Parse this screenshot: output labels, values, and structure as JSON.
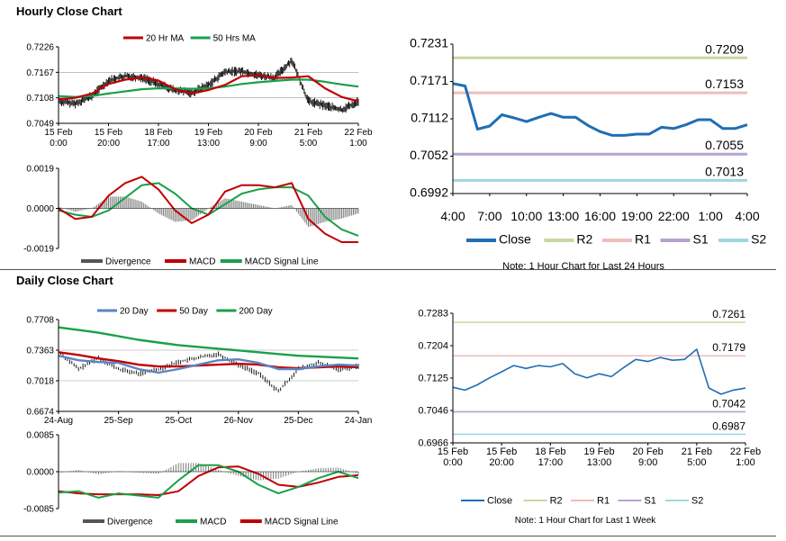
{
  "sections": {
    "hourly_title": "Hourly Close Chart",
    "daily_title": "Daily Close Chart"
  },
  "chart_data": [
    {
      "id": "hourly_price",
      "type": "line",
      "ylim": [
        0.7049,
        0.7226
      ],
      "yticks": [
        "0.7226",
        "0.7167",
        "0.7108",
        "0.7049"
      ],
      "xticks": [
        [
          "15 Feb",
          "0:00"
        ],
        [
          "15 Feb",
          "20:00"
        ],
        [
          "18 Feb",
          "17:00"
        ],
        [
          "19 Feb",
          "13:00"
        ],
        [
          "20 Feb",
          "9:00"
        ],
        [
          "21 Feb",
          "5:00"
        ],
        [
          "22 Feb",
          "1:00"
        ]
      ],
      "legend": [
        "20 Hr MA",
        "50 Hrs MA"
      ],
      "colors": {
        "ma20": "#c00000",
        "ma50": "#1aa04a",
        "price": "#000000"
      },
      "series": [
        {
          "name": "20 Hr MA",
          "values": [
            0.7105,
            0.7108,
            0.7118,
            0.714,
            0.715,
            0.7155,
            0.7148,
            0.7128,
            0.7118,
            0.7126,
            0.7138,
            0.7158,
            0.716,
            0.7154,
            0.7155,
            0.7158,
            0.713,
            0.711,
            0.71
          ]
        },
        {
          "name": "50 Hrs MA",
          "values": [
            0.7112,
            0.711,
            0.7112,
            0.7118,
            0.7123,
            0.7128,
            0.713,
            0.713,
            0.7129,
            0.713,
            0.7134,
            0.714,
            0.7144,
            0.7147,
            0.715,
            0.715,
            0.7145,
            0.7139,
            0.7134
          ]
        },
        {
          "name": "Close",
          "values": [
            0.71,
            0.7095,
            0.7112,
            0.7148,
            0.7158,
            0.7155,
            0.714,
            0.7125,
            0.712,
            0.7138,
            0.7168,
            0.717,
            0.716,
            0.7155,
            0.7195,
            0.71,
            0.709,
            0.708,
            0.71
          ]
        }
      ]
    },
    {
      "id": "hourly_macd",
      "type": "line",
      "ylim": [
        -0.0019,
        0.0019
      ],
      "yticks": [
        "0.0019",
        "0.0000",
        "-0.0019"
      ],
      "legend": [
        "Divergence",
        "MACD",
        "MACD Signal Line"
      ],
      "colors": {
        "divergence": "#666666",
        "macd": "#c00000",
        "signal": "#1aa04a"
      },
      "series": [
        {
          "name": "MACD",
          "values": [
            0.0,
            -0.0005,
            -0.0004,
            0.0006,
            0.0012,
            0.0015,
            0.0009,
            -0.0001,
            -0.0007,
            -0.0003,
            0.0008,
            0.0011,
            0.0011,
            0.001,
            0.0012,
            -0.0005,
            -0.0012,
            -0.0016,
            -0.0016
          ]
        },
        {
          "name": "MACD Signal Line",
          "values": [
            -0.0001,
            -0.0003,
            -0.0004,
            -0.0001,
            0.0005,
            0.0011,
            0.0012,
            0.0007,
            0.0,
            -0.0003,
            0.0002,
            0.0007,
            0.0009,
            0.001,
            0.001,
            0.0006,
            -0.0004,
            -0.001,
            -0.0013
          ]
        }
      ]
    },
    {
      "id": "hourly_levels",
      "type": "line",
      "ylim": [
        0.6992,
        0.7231
      ],
      "yticks": [
        "0.7231",
        "0.7171",
        "0.7112",
        "0.7052",
        "0.6992"
      ],
      "xticks": [
        "4:00",
        "7:00",
        "10:00",
        "13:00",
        "16:00",
        "19:00",
        "22:00",
        "1:00",
        "4:00"
      ],
      "legend": [
        "Close",
        "R2",
        "R1",
        "S1",
        "S2"
      ],
      "colors": {
        "close": "#1f6eb4",
        "r2": "#c6d9a0",
        "r1": "#efbcbc",
        "s1": "#b6a2cf",
        "s2": "#9ed6e0"
      },
      "levels": [
        {
          "name": "R2",
          "value": 0.7209,
          "label": "0.7209"
        },
        {
          "name": "R1",
          "value": 0.7153,
          "label": "0.7153"
        },
        {
          "name": "S1",
          "value": 0.7055,
          "label": "0.7055"
        },
        {
          "name": "S2",
          "value": 0.7013,
          "label": "0.7013"
        }
      ],
      "close": [
        0.7168,
        0.7164,
        0.7095,
        0.71,
        0.7118,
        0.7113,
        0.7107,
        0.7114,
        0.712,
        0.7114,
        0.7114,
        0.7101,
        0.7091,
        0.7085,
        0.7085,
        0.7087,
        0.7087,
        0.7098,
        0.7096,
        0.7102,
        0.711,
        0.711,
        0.7096,
        0.7096,
        0.7102
      ],
      "note": "Note: 1 Hour Chart for Last 24 Hours"
    },
    {
      "id": "daily_price",
      "type": "line",
      "ylim": [
        0.6674,
        0.7708
      ],
      "yticks": [
        "0.7708",
        "0.7363",
        "0.7018",
        "0.6674"
      ],
      "xticks": [
        "24-Aug",
        "25-Sep",
        "25-Oct",
        "26-Nov",
        "25-Dec",
        "24-Jan"
      ],
      "legend": [
        "20 Day",
        "50 Day",
        "200 Day"
      ],
      "colors": {
        "d20": "#5b84c4",
        "d50": "#c00000",
        "d200": "#1aa04a",
        "price": "#000000"
      },
      "series": [
        {
          "name": "20 Day",
          "values": [
            0.73,
            0.725,
            0.723,
            0.722,
            0.715,
            0.711,
            0.715,
            0.72,
            0.725,
            0.726,
            0.722,
            0.715,
            0.715,
            0.718,
            0.72,
            0.719
          ]
        },
        {
          "name": "50 Day",
          "values": [
            0.734,
            0.731,
            0.727,
            0.724,
            0.72,
            0.718,
            0.718,
            0.719,
            0.72,
            0.721,
            0.72,
            0.717,
            0.716,
            0.717,
            0.718,
            0.717
          ]
        },
        {
          "name": "200 Day",
          "values": [
            0.762,
            0.759,
            0.756,
            0.752,
            0.748,
            0.745,
            0.742,
            0.74,
            0.738,
            0.736,
            0.734,
            0.732,
            0.73,
            0.729,
            0.728,
            0.727
          ]
        },
        {
          "name": "Close",
          "values": [
            0.735,
            0.715,
            0.728,
            0.715,
            0.71,
            0.715,
            0.723,
            0.728,
            0.732,
            0.72,
            0.71,
            0.69,
            0.715,
            0.722,
            0.715,
            0.718
          ]
        }
      ]
    },
    {
      "id": "daily_macd",
      "type": "line",
      "ylim": [
        -0.0085,
        0.0085
      ],
      "yticks": [
        "0.0085",
        "0.0000",
        "-0.0085"
      ],
      "legend": [
        "Divergence",
        "MACD",
        "MACD Signal Line"
      ],
      "colors": {
        "divergence": "#666666",
        "macd": "#1aa04a",
        "signal": "#c00000"
      },
      "series": [
        {
          "name": "MACD",
          "values": [
            -0.0048,
            -0.0045,
            -0.006,
            -0.005,
            -0.0055,
            -0.006,
            -0.002,
            0.0015,
            0.0015,
            0.0,
            -0.003,
            -0.005,
            -0.0035,
            -0.0015,
            0.0,
            -0.0015
          ]
        },
        {
          "name": "MACD Signal Line",
          "values": [
            -0.0045,
            -0.005,
            -0.0052,
            -0.0052,
            -0.0052,
            -0.0054,
            -0.0045,
            -0.001,
            0.001,
            0.0012,
            -0.0005,
            -0.003,
            -0.0035,
            -0.0025,
            -0.0012,
            -0.0008
          ]
        }
      ]
    },
    {
      "id": "daily_levels",
      "type": "line",
      "ylim": [
        0.6966,
        0.7283
      ],
      "yticks": [
        "0.7283",
        "0.7204",
        "0.7125",
        "0.7046",
        "0.6966"
      ],
      "xticks": [
        [
          "15 Feb",
          "0:00"
        ],
        [
          "15 Feb",
          "20:00"
        ],
        [
          "18 Feb",
          "17:00"
        ],
        [
          "19 Feb",
          "13:00"
        ],
        [
          "20 Feb",
          "9:00"
        ],
        [
          "21 Feb",
          "5:00"
        ],
        [
          "22 Feb",
          "1:00"
        ]
      ],
      "legend": [
        "Close",
        "R2",
        "R1",
        "S1",
        "S2"
      ],
      "colors": {
        "close": "#1f6eb4",
        "r2": "#c6d9a0",
        "r1": "#efbcbc",
        "s1": "#b6a2cf",
        "s2": "#9ed6e0"
      },
      "levels": [
        {
          "name": "R2",
          "value": 0.7261,
          "label": "0.7261"
        },
        {
          "name": "R1",
          "value": 0.7179,
          "label": "0.7179"
        },
        {
          "name": "S1",
          "value": 0.7042,
          "label": "0.7042"
        },
        {
          "name": "S2",
          "value": 0.6987,
          "label": "0.6987"
        }
      ],
      "close": [
        0.7102,
        0.7095,
        0.7108,
        0.7125,
        0.714,
        0.7155,
        0.7148,
        0.7155,
        0.7152,
        0.716,
        0.7135,
        0.7125,
        0.7135,
        0.7128,
        0.715,
        0.717,
        0.7165,
        0.7175,
        0.7168,
        0.717,
        0.7195,
        0.71,
        0.7085,
        0.7095,
        0.71
      ],
      "note": "Note: 1 Hour Chart for Last 1 Week"
    }
  ]
}
